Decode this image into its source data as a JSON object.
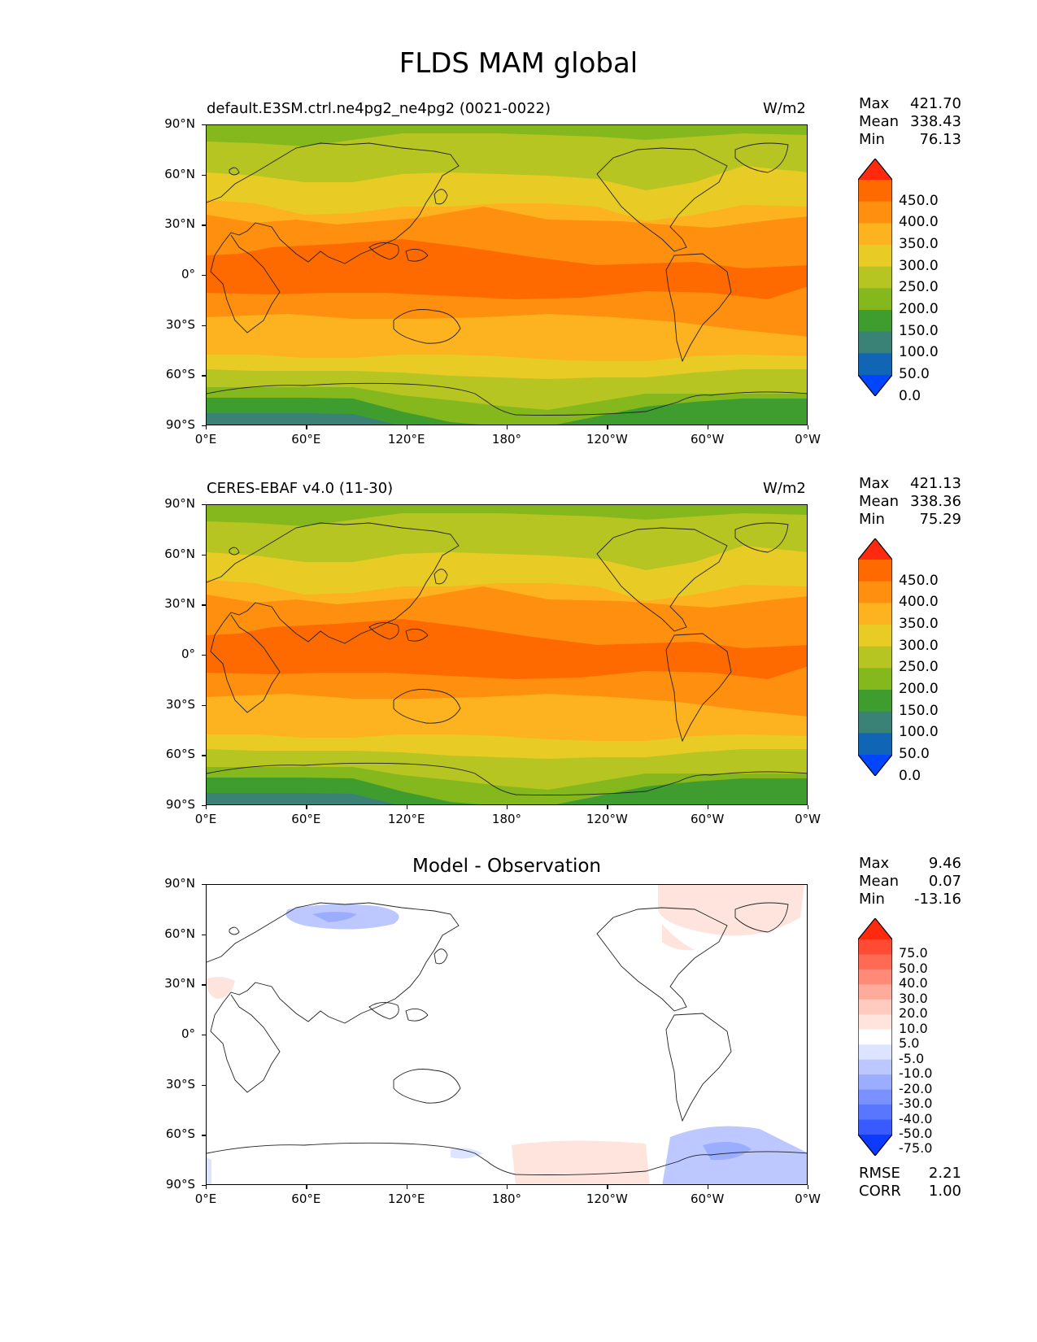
{
  "figure_title": "FLDS MAM global",
  "x_ticks": [
    "0°E",
    "60°E",
    "120°E",
    "180°",
    "120°W",
    "60°W",
    "0°W"
  ],
  "y_ticks": [
    "90°N",
    "60°N",
    "30°N",
    "0°",
    "30°S",
    "60°S",
    "90°S"
  ],
  "panels": [
    {
      "title_left": "default.E3SM.ctrl.ne4pg2_ne4pg2 (0021-0022)",
      "title_right": "W/m2",
      "stats": [
        {
          "label": "Max",
          "value": "421.70"
        },
        {
          "label": "Mean",
          "value": "338.43"
        },
        {
          "label": "Min",
          "value": "76.13"
        }
      ],
      "colorbar_labels": [
        "450.0",
        "400.0",
        "350.0",
        "300.0",
        "250.0",
        "200.0",
        "150.0",
        "100.0",
        "50.0",
        "0.0"
      ]
    },
    {
      "title_left": "CERES-EBAF v4.0 (11-30)",
      "title_right": "W/m2",
      "stats": [
        {
          "label": "Max",
          "value": "421.13"
        },
        {
          "label": "Mean",
          "value": "338.36"
        },
        {
          "label": "Min",
          "value": "75.29"
        }
      ],
      "colorbar_labels": [
        "450.0",
        "400.0",
        "350.0",
        "300.0",
        "250.0",
        "200.0",
        "150.0",
        "100.0",
        "50.0",
        "0.0"
      ]
    },
    {
      "title_center": "Model - Observation",
      "stats": [
        {
          "label": "Max",
          "value": "9.46"
        },
        {
          "label": "Mean",
          "value": "0.07"
        },
        {
          "label": "Min",
          "value": "-13.16"
        }
      ],
      "colorbar_labels": [
        "75.0",
        "50.0",
        "40.0",
        "30.0",
        "20.0",
        "10.0",
        "5.0",
        "-5.0",
        "-10.0",
        "-20.0",
        "-30.0",
        "-40.0",
        "-50.0",
        "-75.0"
      ],
      "metrics": [
        {
          "label": "RMSE",
          "value": "2.21"
        },
        {
          "label": "CORR",
          "value": "1.00"
        }
      ]
    }
  ],
  "colors": {
    "sequential": [
      "#ff2a0d",
      "#ff6a00",
      "#ff8f0f",
      "#fdb21f",
      "#e8cc25",
      "#b7c522",
      "#84b81c",
      "#3f9c2f",
      "#3a8276",
      "#1165b5",
      "#0046ff"
    ],
    "diverging": [
      "#ff2a0d",
      "#ff4a34",
      "#ff6a55",
      "#ff8a78",
      "#ffab9c",
      "#ffcbc0",
      "#ffe4de",
      "#ffffff",
      "#dde4ff",
      "#bcc8ff",
      "#9badff",
      "#7a91ff",
      "#5976ff",
      "#385aff",
      "#0d3aff"
    ]
  }
}
